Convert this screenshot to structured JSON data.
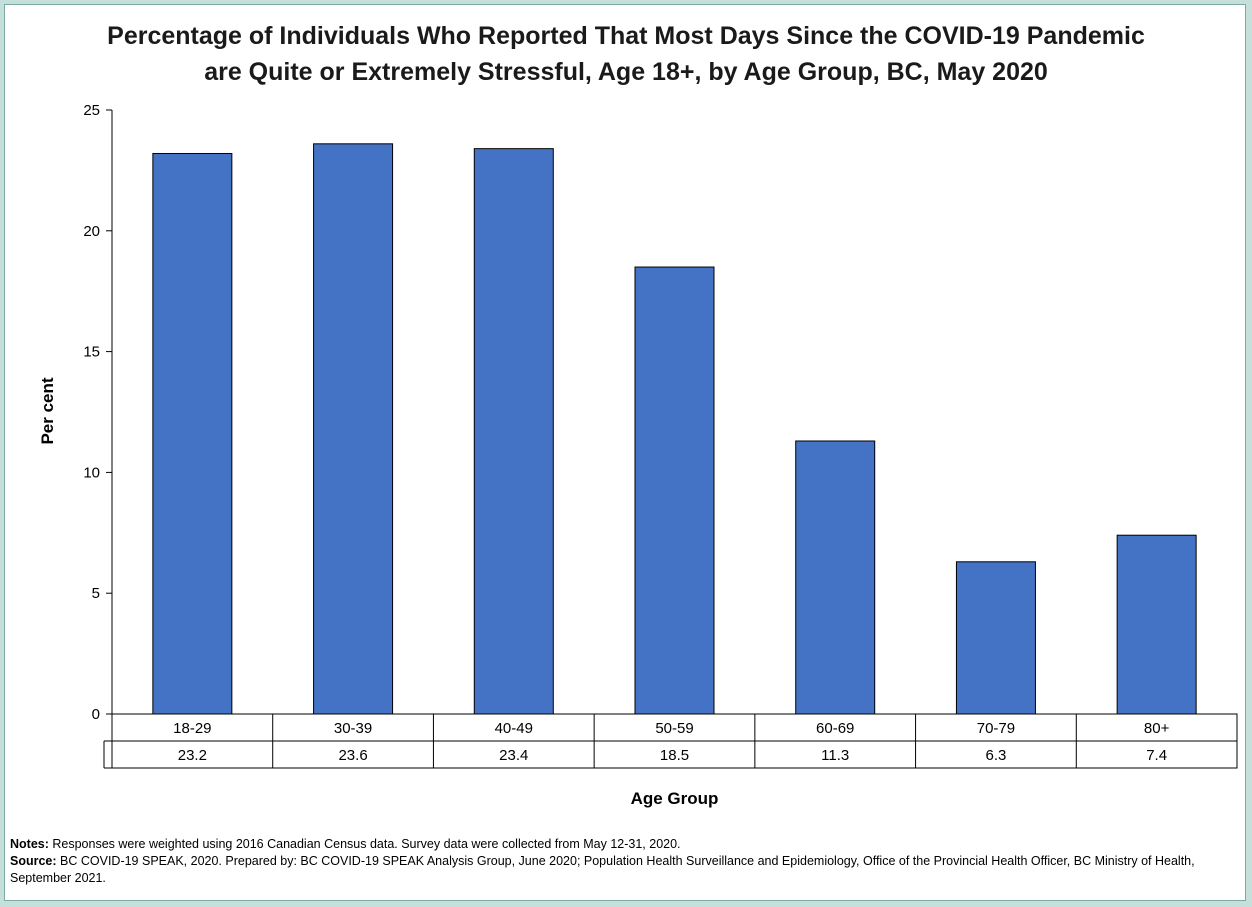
{
  "chart_data": {
    "type": "bar",
    "title_line1": "Percentage of Individuals Who Reported That Most Days Since the COVID-19 Pandemic",
    "title_line2": "are Quite or Extremely Stressful, Age 18+, by Age Group, BC, May 2020",
    "xlabel": "Age Group",
    "ylabel": "Per cent",
    "ylim": [
      0,
      25
    ],
    "yticks": [
      0,
      5,
      10,
      15,
      20,
      25
    ],
    "categories": [
      "18-29",
      "30-39",
      "40-49",
      "50-59",
      "60-69",
      "70-79",
      "80+"
    ],
    "values": [
      23.2,
      23.6,
      23.4,
      18.5,
      11.3,
      6.3,
      7.4
    ],
    "value_labels": [
      "23.2",
      "23.6",
      "23.4",
      "18.5",
      "11.3",
      "6.3",
      "7.4"
    ],
    "grid": false,
    "legend": "none",
    "bar_color": "#4472c4",
    "data_table": true
  },
  "notes": {
    "notes_label": "Notes:",
    "notes_text": " Responses were weighted using 2016 Canadian Census data. Survey data were collected from May 12-31, 2020.",
    "source_label": "Source:",
    "source_text": " BC COVID-19 SPEAK, 2020. Prepared by: BC COVID-19 SPEAK Analysis Group, June 2020; Population Health Surveillance and Epidemiology, Office of the Provincial Health Officer, BC Ministry of Health, September 2021."
  }
}
